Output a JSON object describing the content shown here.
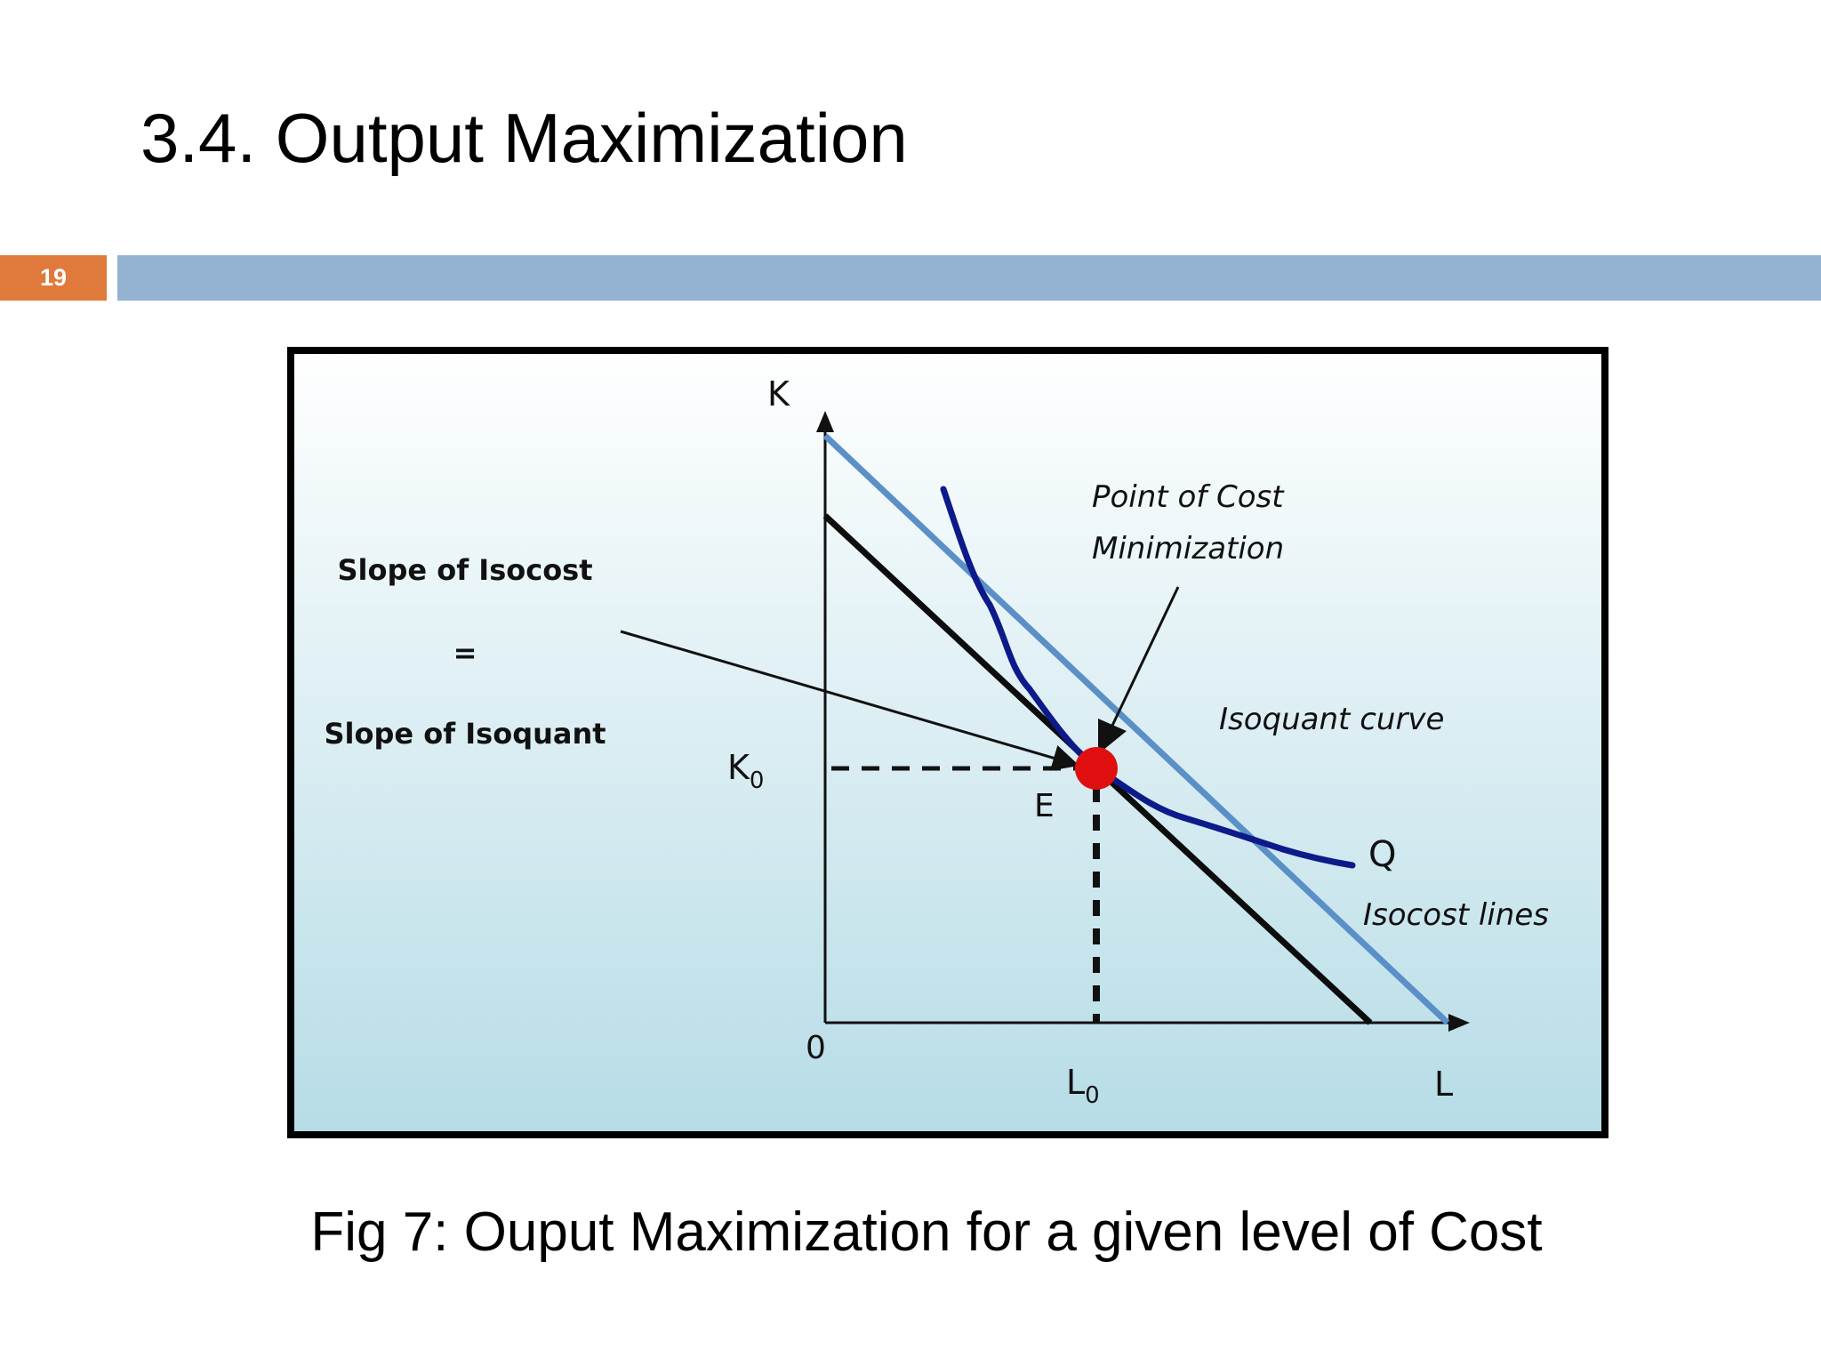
{
  "slide": {
    "title": "3.4. Output Maximization",
    "page_number": "19",
    "caption": "Fig 7: Ouput Maximization for a given level of Cost"
  },
  "diagram": {
    "axis_k_label": "K",
    "axis_l_label": "L",
    "origin_label": "0",
    "k0_label": "K",
    "k0_sub": "0",
    "l0_label": "L",
    "l0_sub": "0",
    "point_label": "E",
    "isoquant_label": "Q",
    "slope_line1": "Slope of Isocost",
    "slope_line2": "=",
    "slope_line3": "Slope of Isoquant",
    "point_cost_min_line1": "Point of Cost",
    "point_cost_min_line2": "Minimization",
    "isoquant_curve_label": "Isoquant curve",
    "isocost_lines_label": "Isocost lines",
    "colors": {
      "outer_isocost": "#5b8fc7",
      "inner_isocost": "#0d0d0d",
      "isoquant": "#0c1a8a",
      "point": "#e01010",
      "background_top": "#ffffff",
      "background_bottom": "#b6dce6"
    }
  }
}
